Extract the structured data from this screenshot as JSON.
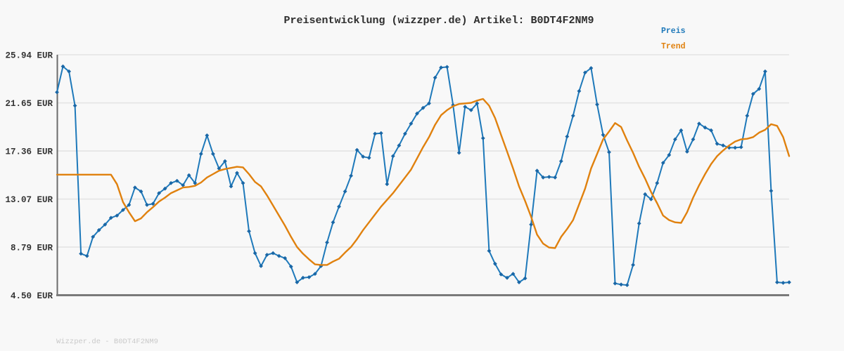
{
  "title": "Preisentwicklung (wizzper.de) Artikel: B0DT4F2NM9",
  "legend": {
    "price_label": "Preis",
    "trend_label": "Trend"
  },
  "footer": "Wizzper.de - B0DT4F2NM9",
  "colors": {
    "price": "#1e79ba",
    "price_marker": "#1a67a6",
    "trend": "#e0810e",
    "grid": "#e4e4e4",
    "axis_left": "#6b6b6b",
    "axis_bottom": "#7a7a7a",
    "title_text": "#2e2e2e",
    "tick_text": "#333333",
    "footer_text": "#c9c9c9",
    "background": "#f8f8f8"
  },
  "chart_data": {
    "type": "line",
    "title": "Preisentwicklung (wizzper.de) Artikel: B0DT4F2NM9",
    "xlabel": "",
    "ylabel": "EUR",
    "ylim": [
      4.5,
      25.94
    ],
    "grid": true,
    "legend_position": "top-right",
    "x_tick_labels": [],
    "y_ticks": [
      {
        "value": 25.94,
        "label": "25.94 EUR"
      },
      {
        "value": 21.65,
        "label": "21.65 EUR"
      },
      {
        "value": 17.36,
        "label": "17.36 EUR"
      },
      {
        "value": 13.07,
        "label": "13.07 EUR"
      },
      {
        "value": 8.79,
        "label": "8.79 EUR"
      },
      {
        "value": 4.5,
        "label": "4.50 EUR"
      }
    ],
    "series": [
      {
        "name": "Preis",
        "color": "#1e79ba",
        "marker": "diamond",
        "values": [
          22.6,
          24.9,
          24.45,
          21.4,
          8.2,
          8.0,
          9.7,
          10.3,
          10.8,
          11.4,
          11.6,
          12.1,
          12.55,
          14.1,
          13.75,
          12.55,
          12.65,
          13.6,
          14.0,
          14.5,
          14.7,
          14.3,
          15.2,
          14.5,
          17.1,
          18.75,
          17.1,
          15.8,
          16.45,
          14.2,
          15.4,
          14.5,
          10.2,
          8.25,
          7.1,
          8.1,
          8.25,
          8.0,
          7.8,
          7.05,
          5.65,
          6.05,
          6.1,
          6.4,
          7.1,
          9.2,
          11.0,
          12.4,
          13.75,
          15.15,
          17.45,
          16.85,
          16.75,
          18.9,
          18.95,
          14.4,
          16.9,
          17.85,
          18.9,
          19.8,
          20.7,
          21.2,
          21.6,
          23.9,
          24.8,
          24.85,
          21.45,
          17.2,
          21.3,
          21.0,
          21.6,
          18.5,
          8.45,
          7.3,
          6.35,
          6.05,
          6.4,
          5.65,
          6.0,
          10.8,
          15.6,
          15.0,
          15.05,
          15.0,
          16.45,
          18.65,
          20.5,
          22.7,
          24.35,
          24.75,
          21.5,
          18.8,
          17.25,
          5.55,
          5.45,
          5.4,
          7.2,
          10.9,
          13.5,
          13.05,
          14.5,
          16.3,
          17.0,
          18.4,
          19.2,
          17.3,
          18.4,
          19.8,
          19.45,
          19.2,
          18.0,
          17.85,
          17.65,
          17.65,
          17.7,
          20.5,
          22.45,
          22.9,
          24.45,
          13.8,
          5.65,
          5.6,
          5.65
        ]
      },
      {
        "name": "Trend",
        "color": "#e0810e",
        "marker": "none",
        "values": [
          15.25,
          15.25,
          15.25,
          15.25,
          15.25,
          15.25,
          15.25,
          15.25,
          15.25,
          15.25,
          14.4,
          12.8,
          11.9,
          11.1,
          11.35,
          11.9,
          12.35,
          12.85,
          13.2,
          13.6,
          13.85,
          14.1,
          14.15,
          14.25,
          14.55,
          15.0,
          15.3,
          15.6,
          15.75,
          15.85,
          15.95,
          15.9,
          15.3,
          14.6,
          14.2,
          13.4,
          12.5,
          11.6,
          10.7,
          9.7,
          8.8,
          8.2,
          7.7,
          7.25,
          7.2,
          7.2,
          7.5,
          7.75,
          8.3,
          8.8,
          9.5,
          10.3,
          11.0,
          11.7,
          12.4,
          13.0,
          13.6,
          14.3,
          15.0,
          15.7,
          16.7,
          17.7,
          18.6,
          19.7,
          20.55,
          21.0,
          21.35,
          21.55,
          21.6,
          21.65,
          21.85,
          22.0,
          21.4,
          20.3,
          18.8,
          17.3,
          15.8,
          14.2,
          12.9,
          11.5,
          9.9,
          9.1,
          8.75,
          8.7,
          9.7,
          10.4,
          11.2,
          12.6,
          14.0,
          15.8,
          17.1,
          18.4,
          19.1,
          19.85,
          19.5,
          18.3,
          17.2,
          15.95,
          14.9,
          13.7,
          12.7,
          11.6,
          11.2,
          11.0,
          10.95,
          11.9,
          13.2,
          14.3,
          15.3,
          16.2,
          16.9,
          17.4,
          17.85,
          18.2,
          18.4,
          18.45,
          18.6,
          19.0,
          19.25,
          19.75,
          19.6,
          18.6,
          16.9
        ]
      }
    ]
  }
}
